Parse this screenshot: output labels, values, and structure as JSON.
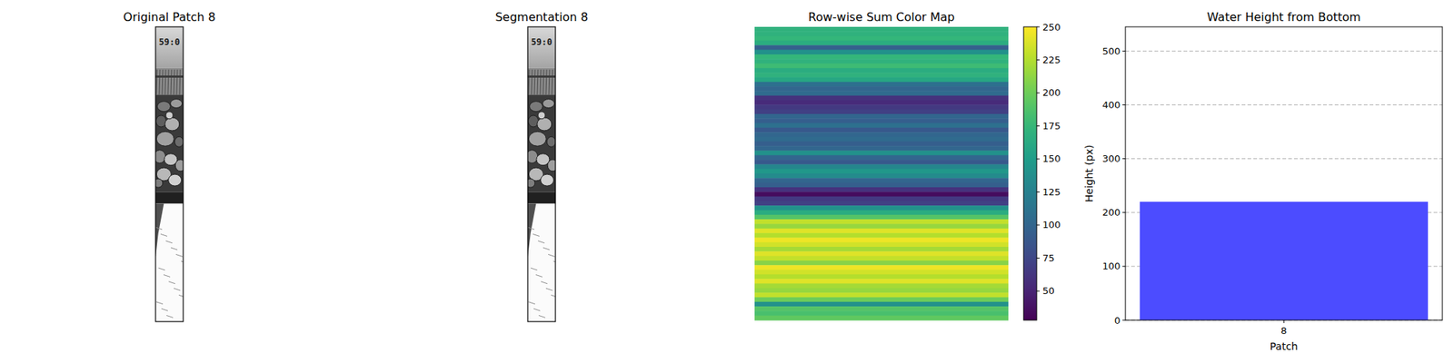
{
  "chart_data": [
    {
      "type": "image",
      "title": "Original Patch 8",
      "text": "59:0"
    },
    {
      "type": "image",
      "title": "Segmentation 8",
      "text": "59:0"
    },
    {
      "type": "heatmap",
      "title": "Row-wise Sum Color Map",
      "tick_labels": false,
      "values": [
        170,
        170,
        175,
        165,
        95,
        140,
        175,
        170,
        180,
        165,
        170,
        160,
        110,
        100,
        105,
        60,
        55,
        65,
        70,
        100,
        95,
        110,
        90,
        100,
        105,
        95,
        100,
        140,
        100,
        90,
        130,
        145,
        135,
        100,
        95,
        60,
        35,
        65,
        70,
        140,
        165,
        190,
        230,
        215,
        240,
        225,
        245,
        235,
        220,
        240,
        230,
        210,
        245,
        235,
        225,
        240,
        220,
        215,
        230,
        200,
        140,
        190,
        185,
        195
      ],
      "colorbar_range": [
        28,
        250
      ],
      "colorbar_ticks": [
        50,
        75,
        100,
        125,
        150,
        175,
        200,
        225,
        250
      ]
    },
    {
      "type": "bar",
      "title": "Water Height from Bottom",
      "categories": [
        "8"
      ],
      "values": [
        220
      ],
      "color": "#4c4cff",
      "ylim": [
        0,
        545
      ],
      "yticks": [
        0,
        100,
        200,
        300,
        400,
        500
      ],
      "grid": true,
      "x_label": "Patch",
      "y_label": "Height (px)"
    }
  ]
}
